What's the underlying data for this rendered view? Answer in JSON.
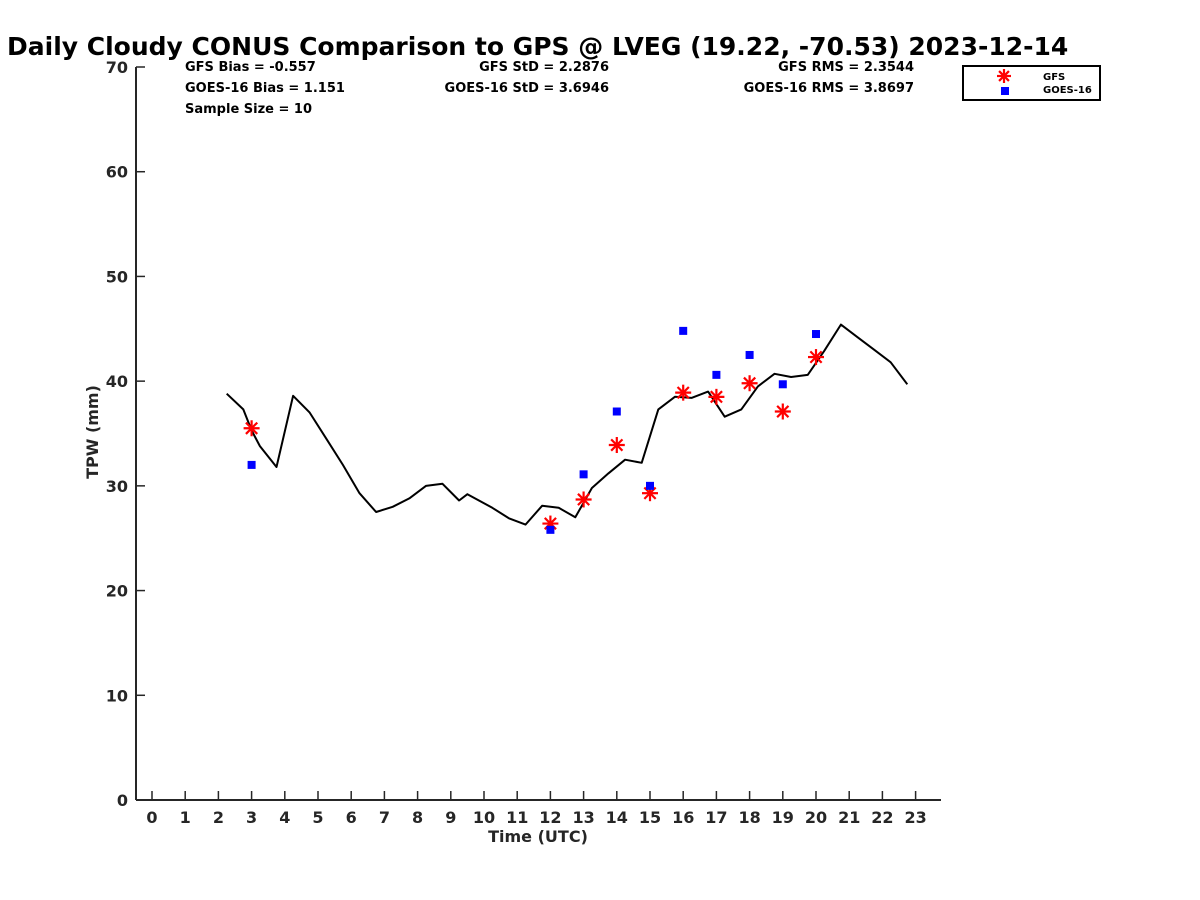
{
  "chart_data": {
    "type": "line",
    "title": "Daily Cloudy CONUS Comparison to GPS @ LVEG (19.22, -70.53) 2023-12-14",
    "xlabel": "Time (UTC)",
    "ylabel": "TPW (mm)",
    "xlim": [
      -0.5,
      23.7
    ],
    "ylim": [
      0,
      70
    ],
    "xticks": [
      0,
      1,
      2,
      3,
      4,
      5,
      6,
      7,
      8,
      9,
      10,
      11,
      12,
      13,
      14,
      15,
      16,
      17,
      18,
      19,
      20,
      21,
      22,
      23
    ],
    "yticks": [
      0,
      10,
      20,
      30,
      40,
      50,
      60,
      70
    ],
    "grid": false,
    "legend_position": "top-right",
    "colors": {
      "gps": "#000000",
      "gfs": "#ff0000",
      "goes": "#0000ff"
    },
    "stats": [
      "GFS Bias = -0.557",
      "GOES-16 Bias = 1.151",
      "Sample Size = 10",
      "GFS StD = 2.2876",
      "GOES-16 StD = 3.6946",
      "GFS RMS = 2.3544",
      "GOES-16 RMS = 3.8697"
    ],
    "series": [
      {
        "marker": "line",
        "x": [
          2.25,
          2.75,
          3.0,
          3.25,
          3.75,
          4.25,
          4.75,
          5.25,
          5.75,
          6.25,
          6.75,
          7.25,
          7.75,
          8.25,
          8.75,
          9.25,
          9.5,
          10.25,
          10.75,
          11.25,
          11.75,
          12.25,
          12.75,
          13.25,
          13.75,
          14.25,
          14.75,
          15.25,
          15.75,
          16.25,
          16.75,
          17.25,
          17.75,
          18.25,
          18.75,
          19.25,
          19.75,
          20.25,
          20.75,
          21.25,
          21.75,
          22.25,
          22.75
        ],
        "y": [
          38.8,
          37.3,
          35.3,
          33.8,
          31.8,
          38.6,
          37.0,
          34.5,
          32.0,
          29.3,
          27.5,
          28.0,
          28.8,
          30.0,
          30.2,
          28.6,
          29.2,
          27.9,
          26.9,
          26.3,
          28.1,
          27.9,
          27.0,
          29.8,
          31.2,
          32.5,
          32.2,
          37.3,
          38.5,
          38.4,
          39.0,
          36.6,
          37.3,
          39.5,
          40.7,
          40.4,
          40.6,
          42.9,
          45.4,
          44.2,
          43.0,
          41.8,
          39.7
        ]
      },
      {
        "name": "GFS",
        "marker": "asterisk",
        "x": [
          3,
          12,
          13,
          14,
          15,
          16,
          17,
          18,
          19,
          20
        ],
        "y": [
          35.5,
          26.4,
          28.7,
          33.9,
          29.3,
          38.9,
          38.5,
          39.8,
          37.1,
          42.3
        ]
      },
      {
        "name": "GOES-16",
        "marker": "square",
        "x": [
          3,
          12,
          13,
          14,
          15,
          16,
          17,
          18,
          19,
          20
        ],
        "y": [
          32.0,
          25.8,
          31.1,
          37.1,
          30.0,
          44.8,
          40.6,
          42.5,
          39.7,
          44.5
        ]
      }
    ]
  }
}
